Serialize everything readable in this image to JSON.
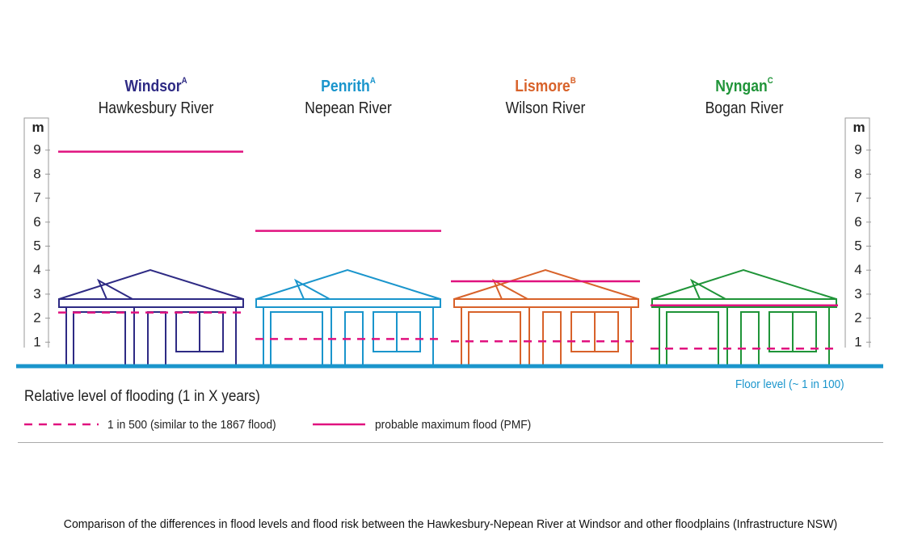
{
  "chart_data": {
    "type": "bar",
    "unit_label": "m",
    "ylim": [
      0,
      9
    ],
    "y_ticks": [
      "1",
      "2",
      "3",
      "4",
      "5",
      "6",
      "7",
      "8",
      "9"
    ],
    "towns": [
      {
        "name": "Windsor",
        "superscript": "A",
        "river": "Hawkesbury River",
        "color": "#2e2a84",
        "flood_1_in_500": 2.2,
        "pmf": 8.9
      },
      {
        "name": "Penrith",
        "superscript": "A",
        "river": "Nepean River",
        "color": "#1a95cc",
        "flood_1_in_500": 1.1,
        "pmf": 5.6
      },
      {
        "name": "Lismore",
        "superscript": "B",
        "river": "Wilson River",
        "color": "#d8622a",
        "flood_1_in_500": 1.0,
        "pmf": 3.5
      },
      {
        "name": "Nyngan",
        "superscript": "C",
        "river": "Bogan River",
        "color": "#1f9438",
        "flood_1_in_500": 0.7,
        "pmf": 2.5
      }
    ],
    "series": [
      {
        "name": "1 in 500 (similar to the 1867 flood)",
        "style": "dashed",
        "color": "#e0127f"
      },
      {
        "name": "probable maximum flood (PMF)",
        "style": "solid",
        "color": "#e0127f"
      }
    ],
    "legend_title": "Relative level of flooding (1 in X years)",
    "floor_label": "Floor level (~ 1 in 100)",
    "floor_color": "#1a95cc"
  },
  "caption": "Comparison of the differences in flood levels and flood risk between the Hawkesbury-Nepean River at Windsor and other floodplains (Infrastructure NSW)"
}
